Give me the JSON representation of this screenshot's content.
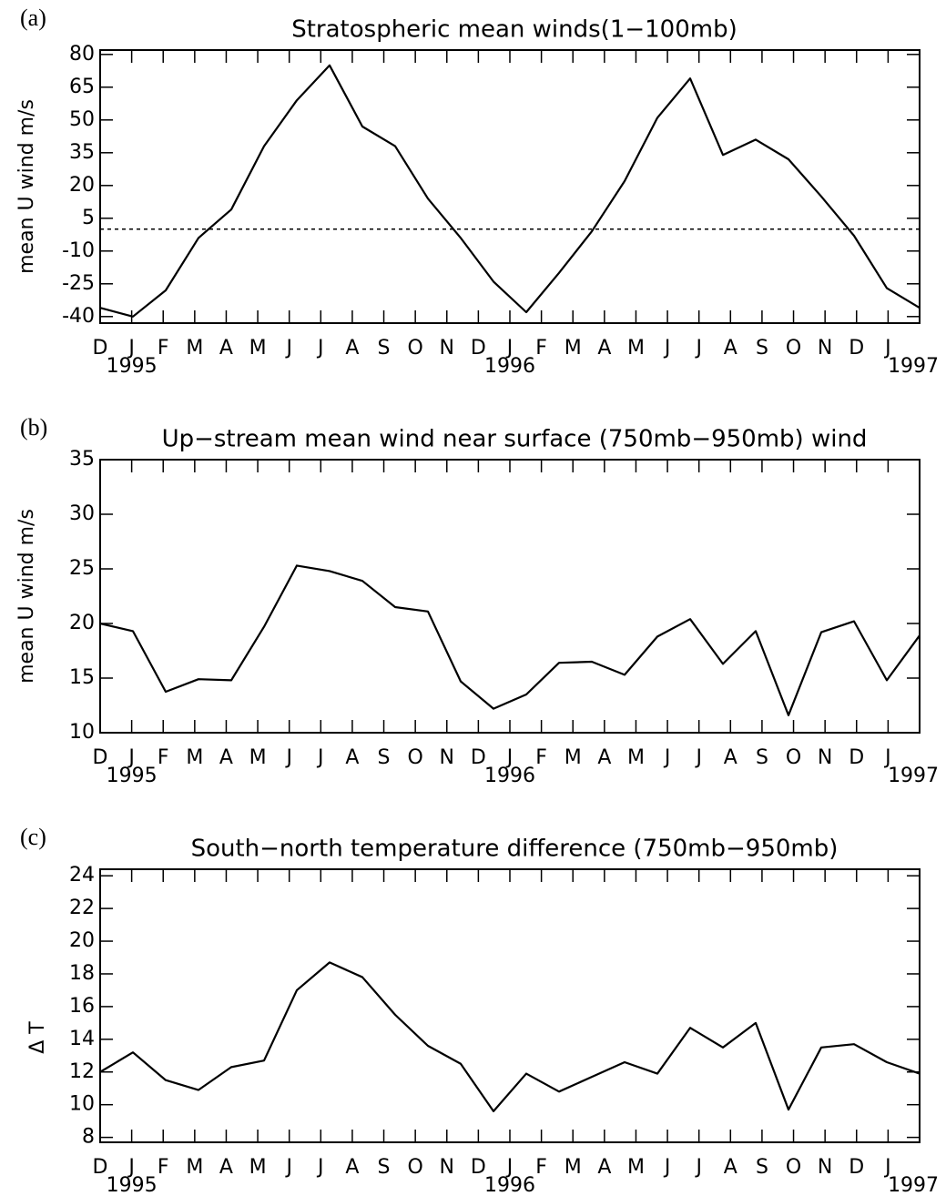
{
  "chart_data": [
    {
      "type": "line",
      "panel_label": "(a)",
      "title": "Stratospheric mean winds(1−100mb)",
      "y_label": "mean U wind m/s",
      "x": [
        0,
        1.04,
        2.08,
        3.12,
        4.16,
        5.2,
        6.24,
        7.28,
        8.32,
        9.36,
        10.4,
        11.44,
        12.48,
        13.52,
        14.56,
        15.6,
        16.64,
        17.68,
        18.72,
        19.76,
        20.8,
        21.84,
        22.88,
        23.92,
        24.96,
        26
      ],
      "values": [
        -36,
        -40,
        -28,
        -4,
        9,
        38,
        59,
        75,
        47,
        38,
        14,
        -4,
        -24,
        -38,
        -20,
        -1,
        22,
        51,
        69,
        34,
        41,
        32,
        15,
        -3,
        -27,
        -36
      ],
      "color": "#000000",
      "hline": 0,
      "xlim": [
        0,
        26
      ],
      "ylim": [
        -43,
        82
      ],
      "yticks": [
        80,
        65,
        50,
        35,
        20,
        5,
        -10,
        -25,
        -40
      ],
      "xticks": [
        {
          "value": 0,
          "label": "D"
        },
        {
          "value": 1,
          "label": "J"
        },
        {
          "value": 2,
          "label": "F"
        },
        {
          "value": 3,
          "label": "M"
        },
        {
          "value": 4,
          "label": "A"
        },
        {
          "value": 5,
          "label": "M"
        },
        {
          "value": 6,
          "label": "J"
        },
        {
          "value": 7,
          "label": "J"
        },
        {
          "value": 8,
          "label": "A"
        },
        {
          "value": 9,
          "label": "S"
        },
        {
          "value": 10,
          "label": "O"
        },
        {
          "value": 11,
          "label": "N"
        },
        {
          "value": 12,
          "label": "D"
        },
        {
          "value": 13,
          "label": "J"
        },
        {
          "value": 14,
          "label": "F"
        },
        {
          "value": 15,
          "label": "M"
        },
        {
          "value": 16,
          "label": "A"
        },
        {
          "value": 17,
          "label": "M"
        },
        {
          "value": 18,
          "label": "J"
        },
        {
          "value": 19,
          "label": "J"
        },
        {
          "value": 20,
          "label": "A"
        },
        {
          "value": 21,
          "label": "S"
        },
        {
          "value": 22,
          "label": "O"
        },
        {
          "value": 23,
          "label": "N"
        },
        {
          "value": 24,
          "label": "D"
        },
        {
          "value": 25,
          "label": "J"
        }
      ],
      "year_labels": [
        {
          "value": 1,
          "label": "1995"
        },
        {
          "value": 13,
          "label": "1996"
        },
        {
          "value": 25.8,
          "label": "1997"
        }
      ]
    },
    {
      "type": "line",
      "panel_label": "(b)",
      "title": "Up−stream mean wind near surface (750mb−950mb) wind",
      "y_label": "mean U wind m/s",
      "x": [
        0,
        1.04,
        2.08,
        3.12,
        4.16,
        5.2,
        6.24,
        7.28,
        8.32,
        9.36,
        10.4,
        11.44,
        12.48,
        13.52,
        14.56,
        15.6,
        16.64,
        17.68,
        18.72,
        19.76,
        20.8,
        21.84,
        22.88,
        23.92,
        24.96,
        26
      ],
      "values": [
        20,
        19.3,
        13.75,
        14.9,
        14.8,
        19.7,
        25.3,
        24.8,
        23.9,
        21.5,
        21.1,
        14.7,
        12.2,
        13.5,
        16.4,
        16.5,
        15.3,
        18.8,
        20.4,
        16.3,
        19.3,
        11.6,
        19.2,
        20.2,
        14.8,
        18.9
      ],
      "color": "#000000",
      "xlim": [
        0,
        26
      ],
      "ylim": [
        10,
        35
      ],
      "yticks": [
        35,
        30,
        25,
        20,
        15,
        10
      ],
      "xticks": [
        {
          "value": 0,
          "label": "D"
        },
        {
          "value": 1,
          "label": "J"
        },
        {
          "value": 2,
          "label": "F"
        },
        {
          "value": 3,
          "label": "M"
        },
        {
          "value": 4,
          "label": "A"
        },
        {
          "value": 5,
          "label": "M"
        },
        {
          "value": 6,
          "label": "J"
        },
        {
          "value": 7,
          "label": "J"
        },
        {
          "value": 8,
          "label": "A"
        },
        {
          "value": 9,
          "label": "S"
        },
        {
          "value": 10,
          "label": "O"
        },
        {
          "value": 11,
          "label": "N"
        },
        {
          "value": 12,
          "label": "D"
        },
        {
          "value": 13,
          "label": "J"
        },
        {
          "value": 14,
          "label": "F"
        },
        {
          "value": 15,
          "label": "M"
        },
        {
          "value": 16,
          "label": "A"
        },
        {
          "value": 17,
          "label": "M"
        },
        {
          "value": 18,
          "label": "J"
        },
        {
          "value": 19,
          "label": "J"
        },
        {
          "value": 20,
          "label": "A"
        },
        {
          "value": 21,
          "label": "S"
        },
        {
          "value": 22,
          "label": "O"
        },
        {
          "value": 23,
          "label": "N"
        },
        {
          "value": 24,
          "label": "D"
        },
        {
          "value": 25,
          "label": "J"
        }
      ],
      "year_labels": [
        {
          "value": 1,
          "label": "1995"
        },
        {
          "value": 13,
          "label": "1996"
        },
        {
          "value": 25.8,
          "label": "1997"
        }
      ]
    },
    {
      "type": "line",
      "panel_label": "(c)",
      "title": "South−north temperature difference (750mb−950mb)",
      "y_label": "Δ T",
      "x": [
        0,
        1.04,
        2.08,
        3.12,
        4.16,
        5.2,
        6.24,
        7.28,
        8.32,
        9.36,
        10.4,
        11.44,
        12.48,
        13.52,
        14.56,
        15.6,
        16.64,
        17.68,
        18.72,
        19.76,
        20.8,
        21.84,
        22.88,
        23.92,
        24.96,
        26
      ],
      "values": [
        12.0,
        13.2,
        11.5,
        10.9,
        12.3,
        12.7,
        17.0,
        18.7,
        17.8,
        15.5,
        13.6,
        12.5,
        9.6,
        11.9,
        10.8,
        11.7,
        12.6,
        11.9,
        14.7,
        13.5,
        15.0,
        9.7,
        13.5,
        13.7,
        12.6,
        11.9
      ],
      "color": "#000000",
      "xlim": [
        0,
        26
      ],
      "ylim": [
        7.7,
        24.4
      ],
      "yticks": [
        24,
        22,
        20,
        18,
        16,
        14,
        12,
        10,
        8
      ],
      "xticks": [
        {
          "value": 0,
          "label": "D"
        },
        {
          "value": 1,
          "label": "J"
        },
        {
          "value": 2,
          "label": "F"
        },
        {
          "value": 3,
          "label": "M"
        },
        {
          "value": 4,
          "label": "A"
        },
        {
          "value": 5,
          "label": "M"
        },
        {
          "value": 6,
          "label": "J"
        },
        {
          "value": 7,
          "label": "J"
        },
        {
          "value": 8,
          "label": "A"
        },
        {
          "value": 9,
          "label": "S"
        },
        {
          "value": 10,
          "label": "O"
        },
        {
          "value": 11,
          "label": "N"
        },
        {
          "value": 12,
          "label": "D"
        },
        {
          "value": 13,
          "label": "J"
        },
        {
          "value": 14,
          "label": "F"
        },
        {
          "value": 15,
          "label": "M"
        },
        {
          "value": 16,
          "label": "A"
        },
        {
          "value": 17,
          "label": "M"
        },
        {
          "value": 18,
          "label": "J"
        },
        {
          "value": 19,
          "label": "J"
        },
        {
          "value": 20,
          "label": "A"
        },
        {
          "value": 21,
          "label": "S"
        },
        {
          "value": 22,
          "label": "O"
        },
        {
          "value": 23,
          "label": "N"
        },
        {
          "value": 24,
          "label": "D"
        },
        {
          "value": 25,
          "label": "J"
        }
      ],
      "year_labels": [
        {
          "value": 1,
          "label": "1995"
        },
        {
          "value": 13,
          "label": "1996"
        },
        {
          "value": 25.8,
          "label": "1997"
        }
      ]
    }
  ]
}
